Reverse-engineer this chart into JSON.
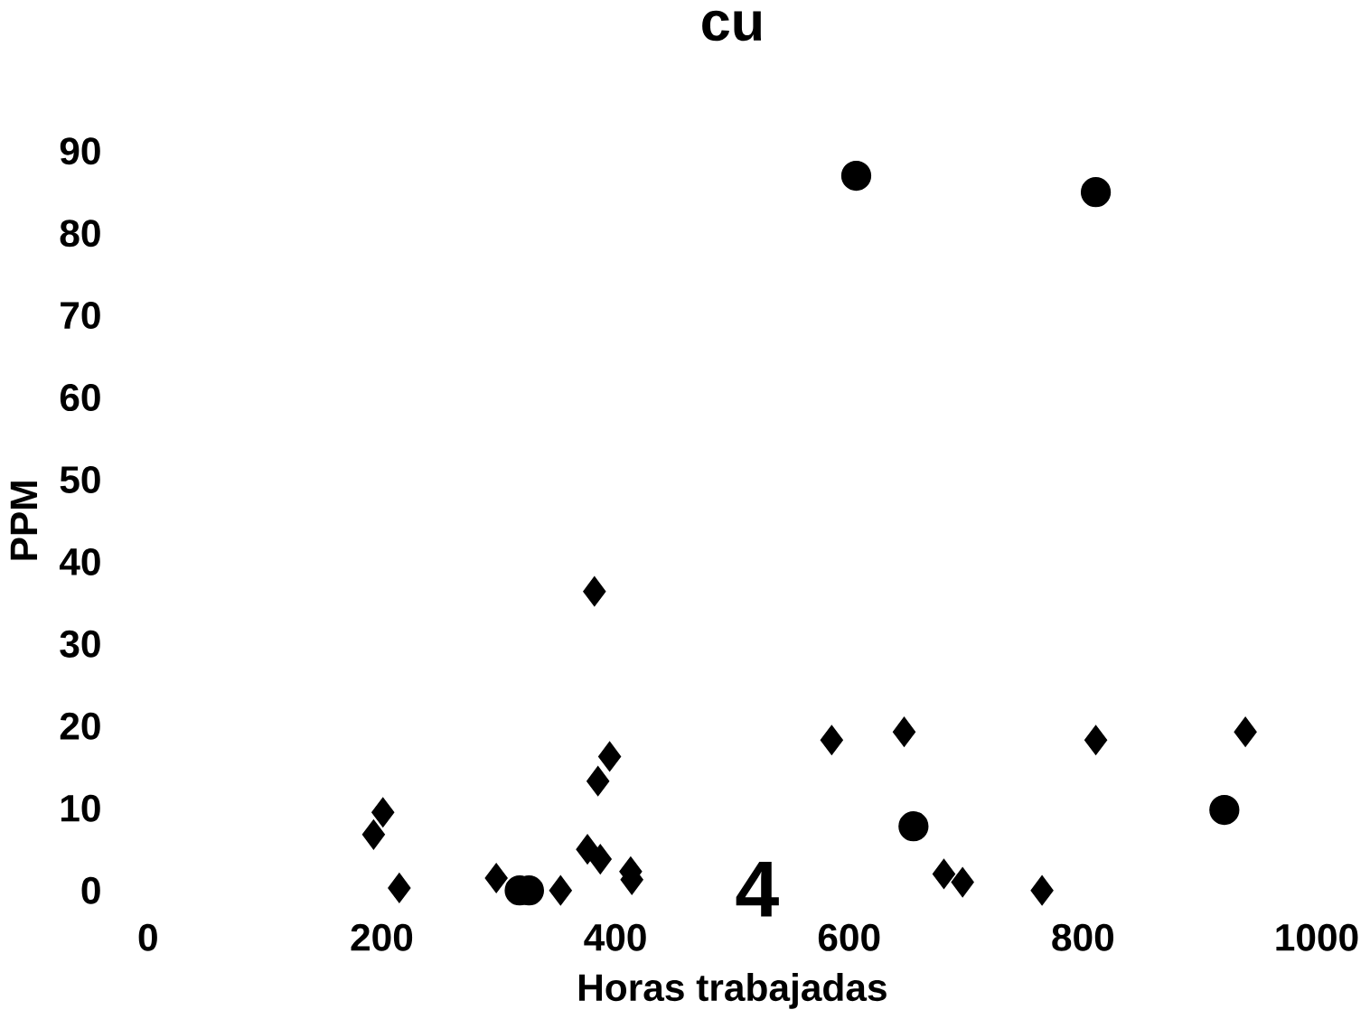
{
  "chart_data": {
    "type": "scatter",
    "title": "cu",
    "xlabel": "Horas trabajadas",
    "ylabel": "PPM",
    "annotations": [
      "4"
    ],
    "xlim": [
      0,
      1000
    ],
    "ylim": [
      0,
      90
    ],
    "xticks": [
      0,
      200,
      400,
      600,
      800,
      1000
    ],
    "yticks": [
      0,
      10,
      20,
      30,
      40,
      50,
      60,
      70,
      80,
      90
    ],
    "grid": false,
    "series": [
      {
        "color": "#000000",
        "marker": "diamond",
        "x": [
          193,
          201,
          215,
          298,
          353,
          382,
          376,
          387,
          385,
          395,
          413,
          414,
          585,
          647,
          681,
          697,
          765,
          811,
          939
        ],
        "values": [
          6.8,
          9.5,
          0.3,
          1.5,
          0,
          36.4,
          5,
          3.8,
          13.3,
          16.3,
          2.3,
          1.3,
          18.3,
          19.3,
          2,
          1,
          0,
          18.3,
          19.3
        ]
      },
      {
        "color": "#000000",
        "marker": "circle",
        "x": [
          606,
          811,
          655,
          921,
          318,
          326
        ],
        "values": [
          87,
          85,
          7.8,
          9.8,
          0,
          0
        ]
      }
    ]
  }
}
